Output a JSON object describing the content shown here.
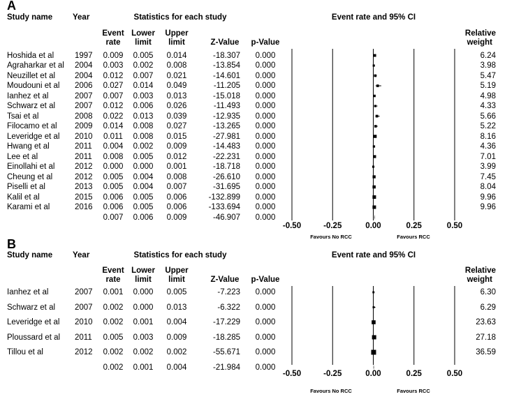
{
  "panels": [
    {
      "letter": "A",
      "headers": {
        "study": "Study name",
        "year": "Year",
        "stats": "Statistics for each study",
        "plot": "Event rate and 95% CI",
        "rate1": "Event",
        "rate2": "rate",
        "lower1": "Lower",
        "lower2": "limit",
        "upper1": "Upper",
        "upper2": "limit",
        "z": "Z-Value",
        "p": "p-Value",
        "weight1": "Relative",
        "weight2": "weight"
      },
      "studies": [
        {
          "name": "Hoshida et al",
          "year": "1997",
          "rate": "0.009",
          "lower": "0.005",
          "upper": "0.014",
          "z": "-18.307",
          "p": "0.000",
          "weight": "6.24"
        },
        {
          "name": "Agraharkar et al",
          "year": "2004",
          "rate": "0.003",
          "lower": "0.002",
          "upper": "0.008",
          "z": "-13.854",
          "p": "0.000",
          "weight": "3.98"
        },
        {
          "name": "Neuzillet et al",
          "year": "2004",
          "rate": "0.012",
          "lower": "0.007",
          "upper": "0.021",
          "z": "-14.601",
          "p": "0.000",
          "weight": "5.47"
        },
        {
          "name": "Moudouni et al",
          "year": "2006",
          "rate": "0.027",
          "lower": "0.014",
          "upper": "0.049",
          "z": "-11.205",
          "p": "0.000",
          "weight": "5.19"
        },
        {
          "name": "Ianhez et al",
          "year": "2007",
          "rate": "0.007",
          "lower": "0.003",
          "upper": "0.013",
          "z": "-15.018",
          "p": "0.000",
          "weight": "4.98"
        },
        {
          "name": "Schwarz et al",
          "year": "2007",
          "rate": "0.012",
          "lower": "0.006",
          "upper": "0.026",
          "z": "-11.493",
          "p": "0.000",
          "weight": "4.33"
        },
        {
          "name": "Tsai et al",
          "year": "2008",
          "rate": "0.022",
          "lower": "0.013",
          "upper": "0.039",
          "z": "-12.935",
          "p": "0.000",
          "weight": "5.66"
        },
        {
          "name": "Filocamo et al",
          "year": "2009",
          "rate": "0.014",
          "lower": "0.008",
          "upper": "0.027",
          "z": "-13.265",
          "p": "0.000",
          "weight": "5.22"
        },
        {
          "name": "Leveridge et al",
          "year": "2010",
          "rate": "0.011",
          "lower": "0.008",
          "upper": "0.015",
          "z": "-27.981",
          "p": "0.000",
          "weight": "8.16"
        },
        {
          "name": "Hwang et al",
          "year": "2011",
          "rate": "0.004",
          "lower": "0.002",
          "upper": "0.009",
          "z": "-14.483",
          "p": "0.000",
          "weight": "4.36"
        },
        {
          "name": "Lee et al",
          "year": "2011",
          "rate": "0.008",
          "lower": "0.005",
          "upper": "0.012",
          "z": "-22.231",
          "p": "0.000",
          "weight": "7.01"
        },
        {
          "name": "Einollahi et al",
          "year": "2012",
          "rate": "0.000",
          "lower": "0.000",
          "upper": "0.001",
          "z": "-18.718",
          "p": "0.000",
          "weight": "3.99"
        },
        {
          "name": "Cheung et al",
          "year": "2012",
          "rate": "0.005",
          "lower": "0.004",
          "upper": "0.008",
          "z": "-26.610",
          "p": "0.000",
          "weight": "7.45"
        },
        {
          "name": "Piselli et al",
          "year": "2013",
          "rate": "0.005",
          "lower": "0.004",
          "upper": "0.007",
          "z": "-31.695",
          "p": "0.000",
          "weight": "8.04"
        },
        {
          "name": "Kalil et al",
          "year": "2015",
          "rate": "0.006",
          "lower": "0.005",
          "upper": "0.006",
          "z": "-132.899",
          "p": "0.000",
          "weight": "9.96"
        },
        {
          "name": "Karami et al",
          "year": "2016",
          "rate": "0.006",
          "lower": "0.005",
          "upper": "0.006",
          "z": "-133.694",
          "p": "0.000",
          "weight": "9.96"
        }
      ],
      "summary": {
        "rate": "0.007",
        "lower": "0.006",
        "upper": "0.009",
        "z": "-46.907",
        "p": "0.000"
      },
      "ticks": [
        "-0.50",
        "-0.25",
        "0.00",
        "0.25",
        "0.50"
      ],
      "favours_left": "Favours No RCC",
      "favours_right": "Favours RCC"
    },
    {
      "letter": "B",
      "headers": {
        "study": "Study name",
        "year": "Year",
        "stats": "Statistics for each study",
        "plot": "Event rate and 95% CI",
        "rate1": "Event",
        "rate2": "rate",
        "lower1": "Lower",
        "lower2": "limit",
        "upper1": "Upper",
        "upper2": "limit",
        "z": "Z-Value",
        "p": "p-Value",
        "weight1": "Relative",
        "weight2": "weight"
      },
      "studies": [
        {
          "name": "Ianhez et al",
          "year": "2007",
          "rate": "0.001",
          "lower": "0.000",
          "upper": "0.005",
          "z": "-7.223",
          "p": "0.000",
          "weight": "6.30"
        },
        {
          "name": "Schwarz et al",
          "year": "2007",
          "rate": "0.002",
          "lower": "0.000",
          "upper": "0.013",
          "z": "-6.322",
          "p": "0.000",
          "weight": "6.29"
        },
        {
          "name": "Leveridge et al",
          "year": "2010",
          "rate": "0.002",
          "lower": "0.001",
          "upper": "0.004",
          "z": "-17.229",
          "p": "0.000",
          "weight": "23.63"
        },
        {
          "name": "Ploussard et al",
          "year": "2011",
          "rate": "0.005",
          "lower": "0.003",
          "upper": "0.009",
          "z": "-18.285",
          "p": "0.000",
          "weight": "27.18"
        },
        {
          "name": "Tillou et al",
          "year": "2012",
          "rate": "0.002",
          "lower": "0.002",
          "upper": "0.002",
          "z": "-55.671",
          "p": "0.000",
          "weight": "36.59"
        }
      ],
      "summary": {
        "rate": "0.002",
        "lower": "0.001",
        "upper": "0.004",
        "z": "-21.984",
        "p": "0.000"
      },
      "ticks": [
        "-0.50",
        "-0.25",
        "0.00",
        "0.25",
        "0.50"
      ],
      "favours_left": "Favours No RCC",
      "favours_right": "Favours RCC"
    }
  ],
  "chart_data": [
    {
      "type": "forest",
      "xlim": [
        -0.5,
        0.5
      ],
      "x": [
        -0.5,
        -0.25,
        0.0,
        0.25,
        0.5
      ],
      "categories": [
        "Hoshida et al",
        "Agraharkar et al",
        "Neuzillet et al",
        "Moudouni et al",
        "Ianhez et al",
        "Schwarz et al",
        "Tsai et al",
        "Filocamo et al",
        "Leveridge et al",
        "Hwang et al",
        "Lee et al",
        "Einollahi et al",
        "Cheung et al",
        "Piselli et al",
        "Kalil et al",
        "Karami et al"
      ],
      "values": [
        0.009,
        0.003,
        0.012,
        0.027,
        0.007,
        0.012,
        0.022,
        0.014,
        0.011,
        0.004,
        0.008,
        0.0,
        0.005,
        0.005,
        0.006,
        0.006
      ],
      "lower": [
        0.005,
        0.002,
        0.007,
        0.014,
        0.003,
        0.006,
        0.013,
        0.008,
        0.008,
        0.002,
        0.005,
        0.0,
        0.004,
        0.004,
        0.005,
        0.005
      ],
      "upper": [
        0.014,
        0.008,
        0.021,
        0.049,
        0.013,
        0.026,
        0.039,
        0.027,
        0.015,
        0.009,
        0.012,
        0.001,
        0.008,
        0.007,
        0.006,
        0.006
      ],
      "weights": [
        6.24,
        3.98,
        5.47,
        5.19,
        4.98,
        4.33,
        5.66,
        5.22,
        8.16,
        4.36,
        7.01,
        3.99,
        7.45,
        8.04,
        9.96,
        9.96
      ],
      "summary": {
        "value": 0.007,
        "lower": 0.006,
        "upper": 0.009
      }
    },
    {
      "type": "forest",
      "xlim": [
        -0.5,
        0.5
      ],
      "x": [
        -0.5,
        -0.25,
        0.0,
        0.25,
        0.5
      ],
      "categories": [
        "Ianhez et al",
        "Schwarz et al",
        "Leveridge et al",
        "Ploussard et al",
        "Tillou et al"
      ],
      "values": [
        0.001,
        0.002,
        0.002,
        0.005,
        0.002
      ],
      "lower": [
        0.0,
        0.0,
        0.001,
        0.003,
        0.002
      ],
      "upper": [
        0.005,
        0.013,
        0.004,
        0.009,
        0.002
      ],
      "weights": [
        6.3,
        6.29,
        23.63,
        27.18,
        36.59
      ],
      "summary": {
        "value": 0.002,
        "lower": 0.001,
        "upper": 0.004
      }
    }
  ]
}
